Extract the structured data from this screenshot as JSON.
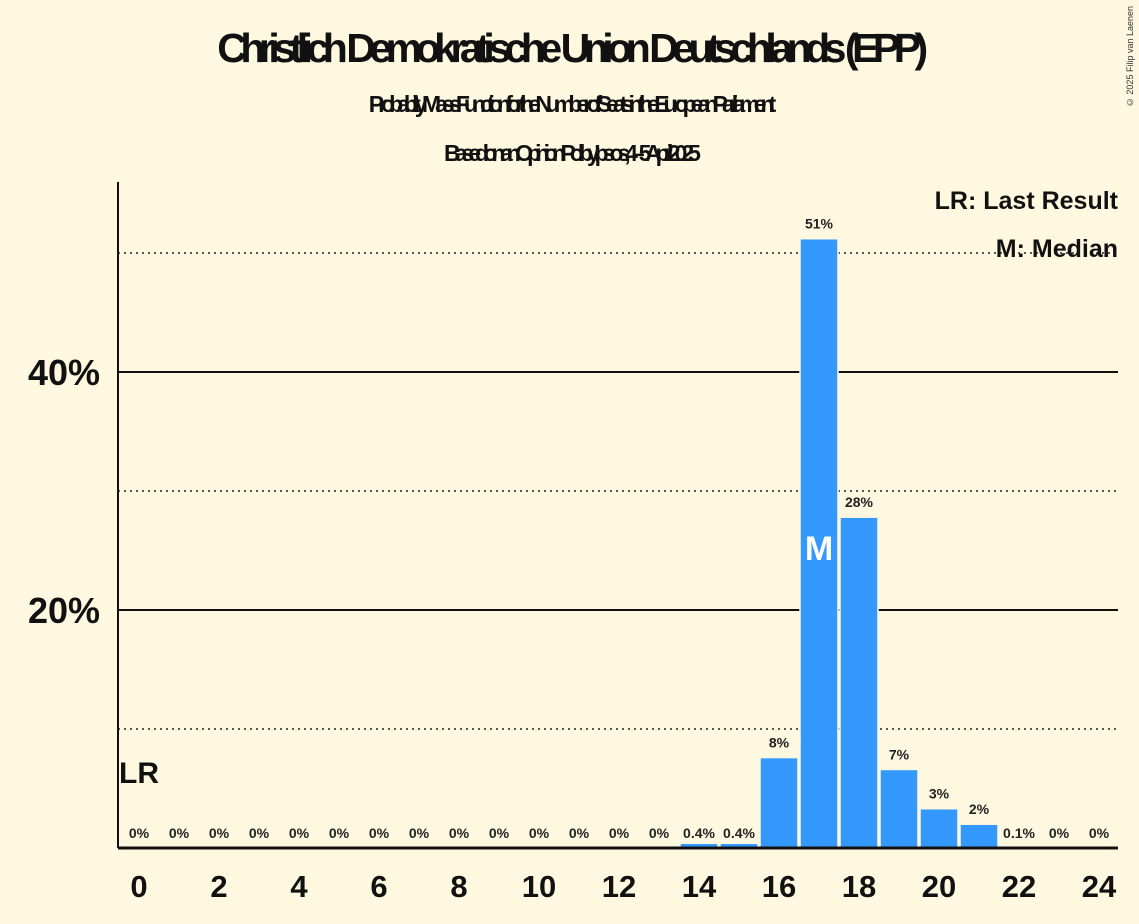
{
  "chart_data": {
    "type": "bar",
    "title": "Christlich Demokratische Union Deutschlands (EPP)",
    "subtitle": "Probability Mass Function for the Number of Seats in the European Parliament",
    "subtitle2": "Based on an Opinion Poll by Ipsos, 4–5 April 2025",
    "xlabel": "",
    "ylabel": "",
    "ylim": [
      0,
      56
    ],
    "x": [
      0,
      1,
      2,
      3,
      4,
      5,
      6,
      7,
      8,
      9,
      10,
      11,
      12,
      13,
      14,
      15,
      16,
      17,
      18,
      19,
      20,
      21,
      22,
      23,
      24
    ],
    "values": [
      0,
      0,
      0,
      0,
      0,
      0,
      0,
      0,
      0,
      0,
      0,
      0,
      0,
      0,
      0.4,
      0.4,
      7.6,
      51.2,
      27.8,
      6.6,
      3.3,
      2.0,
      0.1,
      0,
      0
    ],
    "data_labels": [
      "0%",
      "0%",
      "0%",
      "0%",
      "0%",
      "0%",
      "0%",
      "0%",
      "0%",
      "0%",
      "0%",
      "0%",
      "0%",
      "0%",
      "0.4%",
      "0.4%",
      "8%",
      "51%",
      "28%",
      "7%",
      "3%",
      "2%",
      "0.1%",
      "0%",
      "0%"
    ],
    "x_ticks": [
      0,
      2,
      4,
      6,
      8,
      10,
      12,
      14,
      16,
      18,
      20,
      22,
      24
    ],
    "x_tick_labels": [
      "0",
      "2",
      "4",
      "6",
      "8",
      "10",
      "12",
      "14",
      "16",
      "18",
      "20",
      "22",
      "24"
    ],
    "y_ticks_major": [
      20,
      40
    ],
    "y_tick_labels": [
      "20%",
      "40%"
    ],
    "y_ticks_minor": [
      10,
      30,
      50
    ],
    "grid": true,
    "median": 17,
    "median_label": "M",
    "last_result": 0,
    "last_result_label": "LR",
    "legend": [
      "LR: Last Result",
      "M: Median"
    ],
    "legend_placement": "top-right",
    "bar_color": "#3399FF",
    "background": "#FFF8E1"
  },
  "copyright": "© 2025 Filip van Laenen"
}
